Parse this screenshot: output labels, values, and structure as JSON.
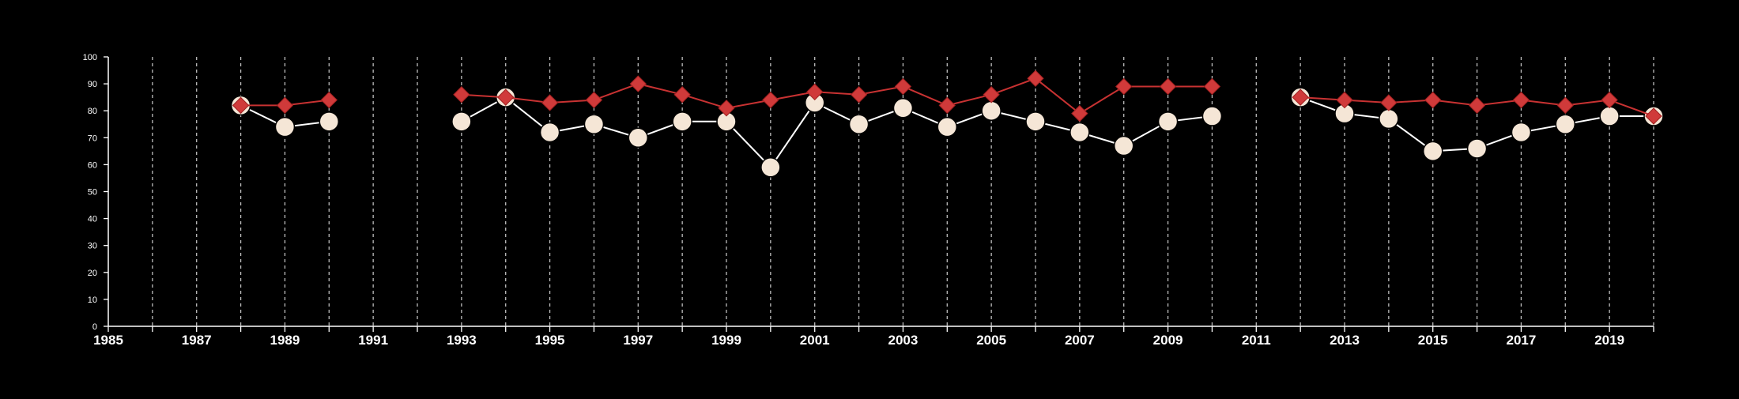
{
  "chart_data": {
    "type": "line",
    "title": "",
    "xlabel": "",
    "ylabel": "",
    "xlim": [
      1985,
      2020
    ],
    "ylim": [
      0,
      100
    ],
    "x_tick_labels": [
      "1985",
      "1987",
      "1989",
      "1991",
      "1993",
      "1995",
      "1997",
      "1999",
      "2001",
      "2003",
      "2005",
      "2007",
      "2009",
      "2011",
      "2013",
      "2015",
      "2017",
      "2019"
    ],
    "y_tick_labels": [
      "0",
      "10",
      "20",
      "30",
      "40",
      "50",
      "60",
      "70",
      "80",
      "90",
      "100"
    ],
    "grid": "vertical dashed lines at every year",
    "legend": "none",
    "series": [
      {
        "marker": "circle",
        "color": "#ffffff",
        "marker_fill": "#f5e6d6",
        "x": [
          1988,
          1989,
          1990,
          1993,
          1994,
          1995,
          1996,
          1997,
          1998,
          1999,
          2000,
          2001,
          2002,
          2003,
          2004,
          2005,
          2006,
          2007,
          2008,
          2009,
          2010,
          2012,
          2013,
          2014,
          2015,
          2016,
          2017,
          2018,
          2019,
          2020
        ],
        "values": [
          82,
          74,
          76,
          76,
          85,
          72,
          75,
          70,
          76,
          76,
          59,
          83,
          75,
          81,
          74,
          80,
          76,
          72,
          67,
          76,
          78,
          85,
          79,
          77,
          65,
          66,
          72,
          75,
          78,
          78
        ]
      },
      {
        "marker": "diamond",
        "color": "#c83232",
        "marker_fill": "#d03a3a",
        "x": [
          1988,
          1989,
          1990,
          1993,
          1994,
          1995,
          1996,
          1997,
          1998,
          1999,
          2000,
          2001,
          2002,
          2003,
          2004,
          2005,
          2006,
          2007,
          2008,
          2009,
          2010,
          2012,
          2013,
          2014,
          2015,
          2016,
          2017,
          2018,
          2019,
          2020
        ],
        "values": [
          82,
          82,
          84,
          86,
          85,
          83,
          84,
          90,
          86,
          81,
          84,
          87,
          86,
          89,
          82,
          86,
          92,
          79,
          89,
          89,
          89,
          85,
          84,
          83,
          84,
          82,
          84,
          82,
          84,
          78
        ]
      }
    ]
  }
}
